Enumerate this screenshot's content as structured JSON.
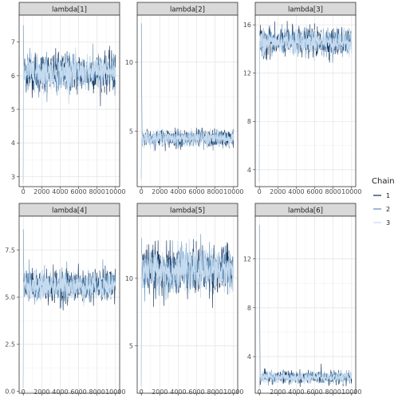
{
  "chart_data": {
    "type": "line",
    "plot_kind": "MCMC trace plot",
    "x_range": [
      0,
      10000
    ],
    "x_ticks": [
      0,
      2000,
      4000,
      6000,
      8000,
      10000
    ],
    "legend": {
      "title": "Chain",
      "placement": "right",
      "entries": [
        {
          "label": "1",
          "color": "#0b2a52"
        },
        {
          "label": "2",
          "color": "#5b8db8"
        },
        {
          "label": "3",
          "color": "#c6dbef"
        }
      ]
    },
    "panels": [
      {
        "title": "lambda[1]",
        "ylim": [
          2.7,
          7.8
        ],
        "yticks": [
          3,
          4,
          5,
          6,
          7
        ],
        "ytick_labels": [
          "3",
          "4",
          "5",
          "6",
          "7"
        ],
        "center": 6.1,
        "spread": 0.5,
        "start": 2.9,
        "start_spike_max": 7.5,
        "start_spike_min": 2.8
      },
      {
        "title": "lambda[2]",
        "ylim": [
          1.0,
          13.4
        ],
        "yticks": [
          5,
          10
        ],
        "ytick_labels": [
          "5",
          "10"
        ],
        "center": 4.5,
        "spread": 0.55,
        "start": 1.6,
        "start_spike_max": 12.8,
        "start_spike_min": 1.5
      },
      {
        "title": "lambda[3]",
        "ylim": [
          2.6,
          16.8
        ],
        "yticks": [
          4,
          8,
          12,
          16
        ],
        "ytick_labels": [
          "4",
          "8",
          "12",
          "16"
        ],
        "center": 14.6,
        "spread": 1.0,
        "start": 3.0,
        "start_spike_max": 15.5,
        "start_spike_min": 3.0
      },
      {
        "title": "lambda[4]",
        "ylim": [
          -0.1,
          9.3
        ],
        "yticks": [
          0.0,
          2.5,
          5.0,
          7.5
        ],
        "ytick_labels": [
          "0.0",
          "2.5",
          "5.0",
          "7.5"
        ],
        "center": 5.6,
        "spread": 0.75,
        "start": 0.2,
        "start_spike_max": 8.6,
        "start_spike_min": 0.2
      },
      {
        "title": "lambda[5]",
        "ylim": [
          1.5,
          14.6
        ],
        "yticks": [
          5,
          10
        ],
        "ytick_labels": [
          "5",
          "10"
        ],
        "center": 10.6,
        "spread": 1.55,
        "start": 2.1,
        "start_spike_max": 13.0,
        "start_spike_min": 2.0
      },
      {
        "title": "lambda[6]",
        "ylim": [
          1.0,
          15.5
        ],
        "yticks": [
          4,
          8,
          12
        ],
        "ytick_labels": [
          "4",
          "8",
          "12"
        ],
        "center": 2.3,
        "spread": 0.45,
        "start": 1.5,
        "start_spike_max": 14.8,
        "start_spike_min": 1.4
      }
    ]
  }
}
